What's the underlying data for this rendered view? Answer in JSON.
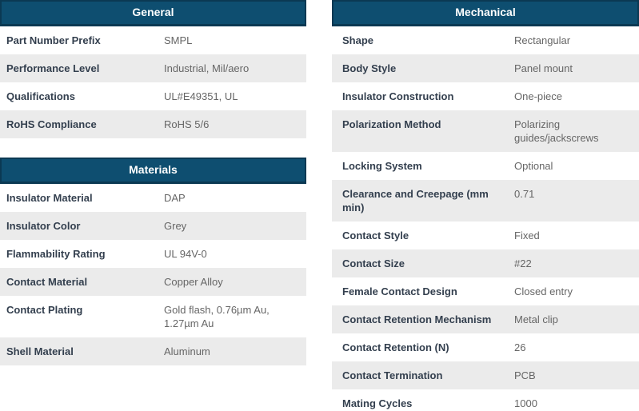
{
  "colors": {
    "header_bg": "#0e4e70",
    "header_border": "#0b3953",
    "header_text": "#ffffff",
    "row_alt_bg": "#ebebeb",
    "label_color": "#333f4e",
    "value_color": "#666666"
  },
  "tables": [
    {
      "id": "general",
      "title": "General",
      "rows": [
        {
          "label": "Part Number Prefix",
          "value": "SMPL"
        },
        {
          "label": "Performance Level",
          "value": "Industrial, Mil/aero"
        },
        {
          "label": "Qualifications",
          "value": "UL#E49351, UL"
        },
        {
          "label": "RoHS Compliance",
          "value": "RoHS 5/6"
        }
      ]
    },
    {
      "id": "materials",
      "title": "Materials",
      "rows": [
        {
          "label": "Insulator Material",
          "value": "DAP"
        },
        {
          "label": "Insulator Color",
          "value": "Grey"
        },
        {
          "label": "Flammability Rating",
          "value": "UL 94V-0"
        },
        {
          "label": "Contact Material",
          "value": "Copper Alloy"
        },
        {
          "label": "Contact Plating",
          "value": "Gold flash, 0.76µm Au, 1.27µm Au"
        },
        {
          "label": "Shell Material",
          "value": "Aluminum"
        }
      ]
    },
    {
      "id": "mechanical",
      "title": "Mechanical",
      "rows": [
        {
          "label": "Shape",
          "value": "Rectangular"
        },
        {
          "label": "Body Style",
          "value": "Panel mount"
        },
        {
          "label": "Insulator Construction",
          "value": "One-piece"
        },
        {
          "label": "Polarization Method",
          "value": "Polarizing guides/jackscrews"
        },
        {
          "label": "Locking System",
          "value": "Optional"
        },
        {
          "label": "Clearance and Creepage (mm min)",
          "value": "0.71"
        },
        {
          "label": "Contact Style",
          "value": "Fixed"
        },
        {
          "label": "Contact Size",
          "value": "#22"
        },
        {
          "label": "Female Contact Design",
          "value": "Closed entry"
        },
        {
          "label": "Contact Retention Mechanism",
          "value": "Metal clip"
        },
        {
          "label": "Contact Retention (N)",
          "value": "26"
        },
        {
          "label": "Contact Termination",
          "value": "PCB"
        },
        {
          "label": "Mating Cycles",
          "value": "1000"
        }
      ]
    }
  ]
}
